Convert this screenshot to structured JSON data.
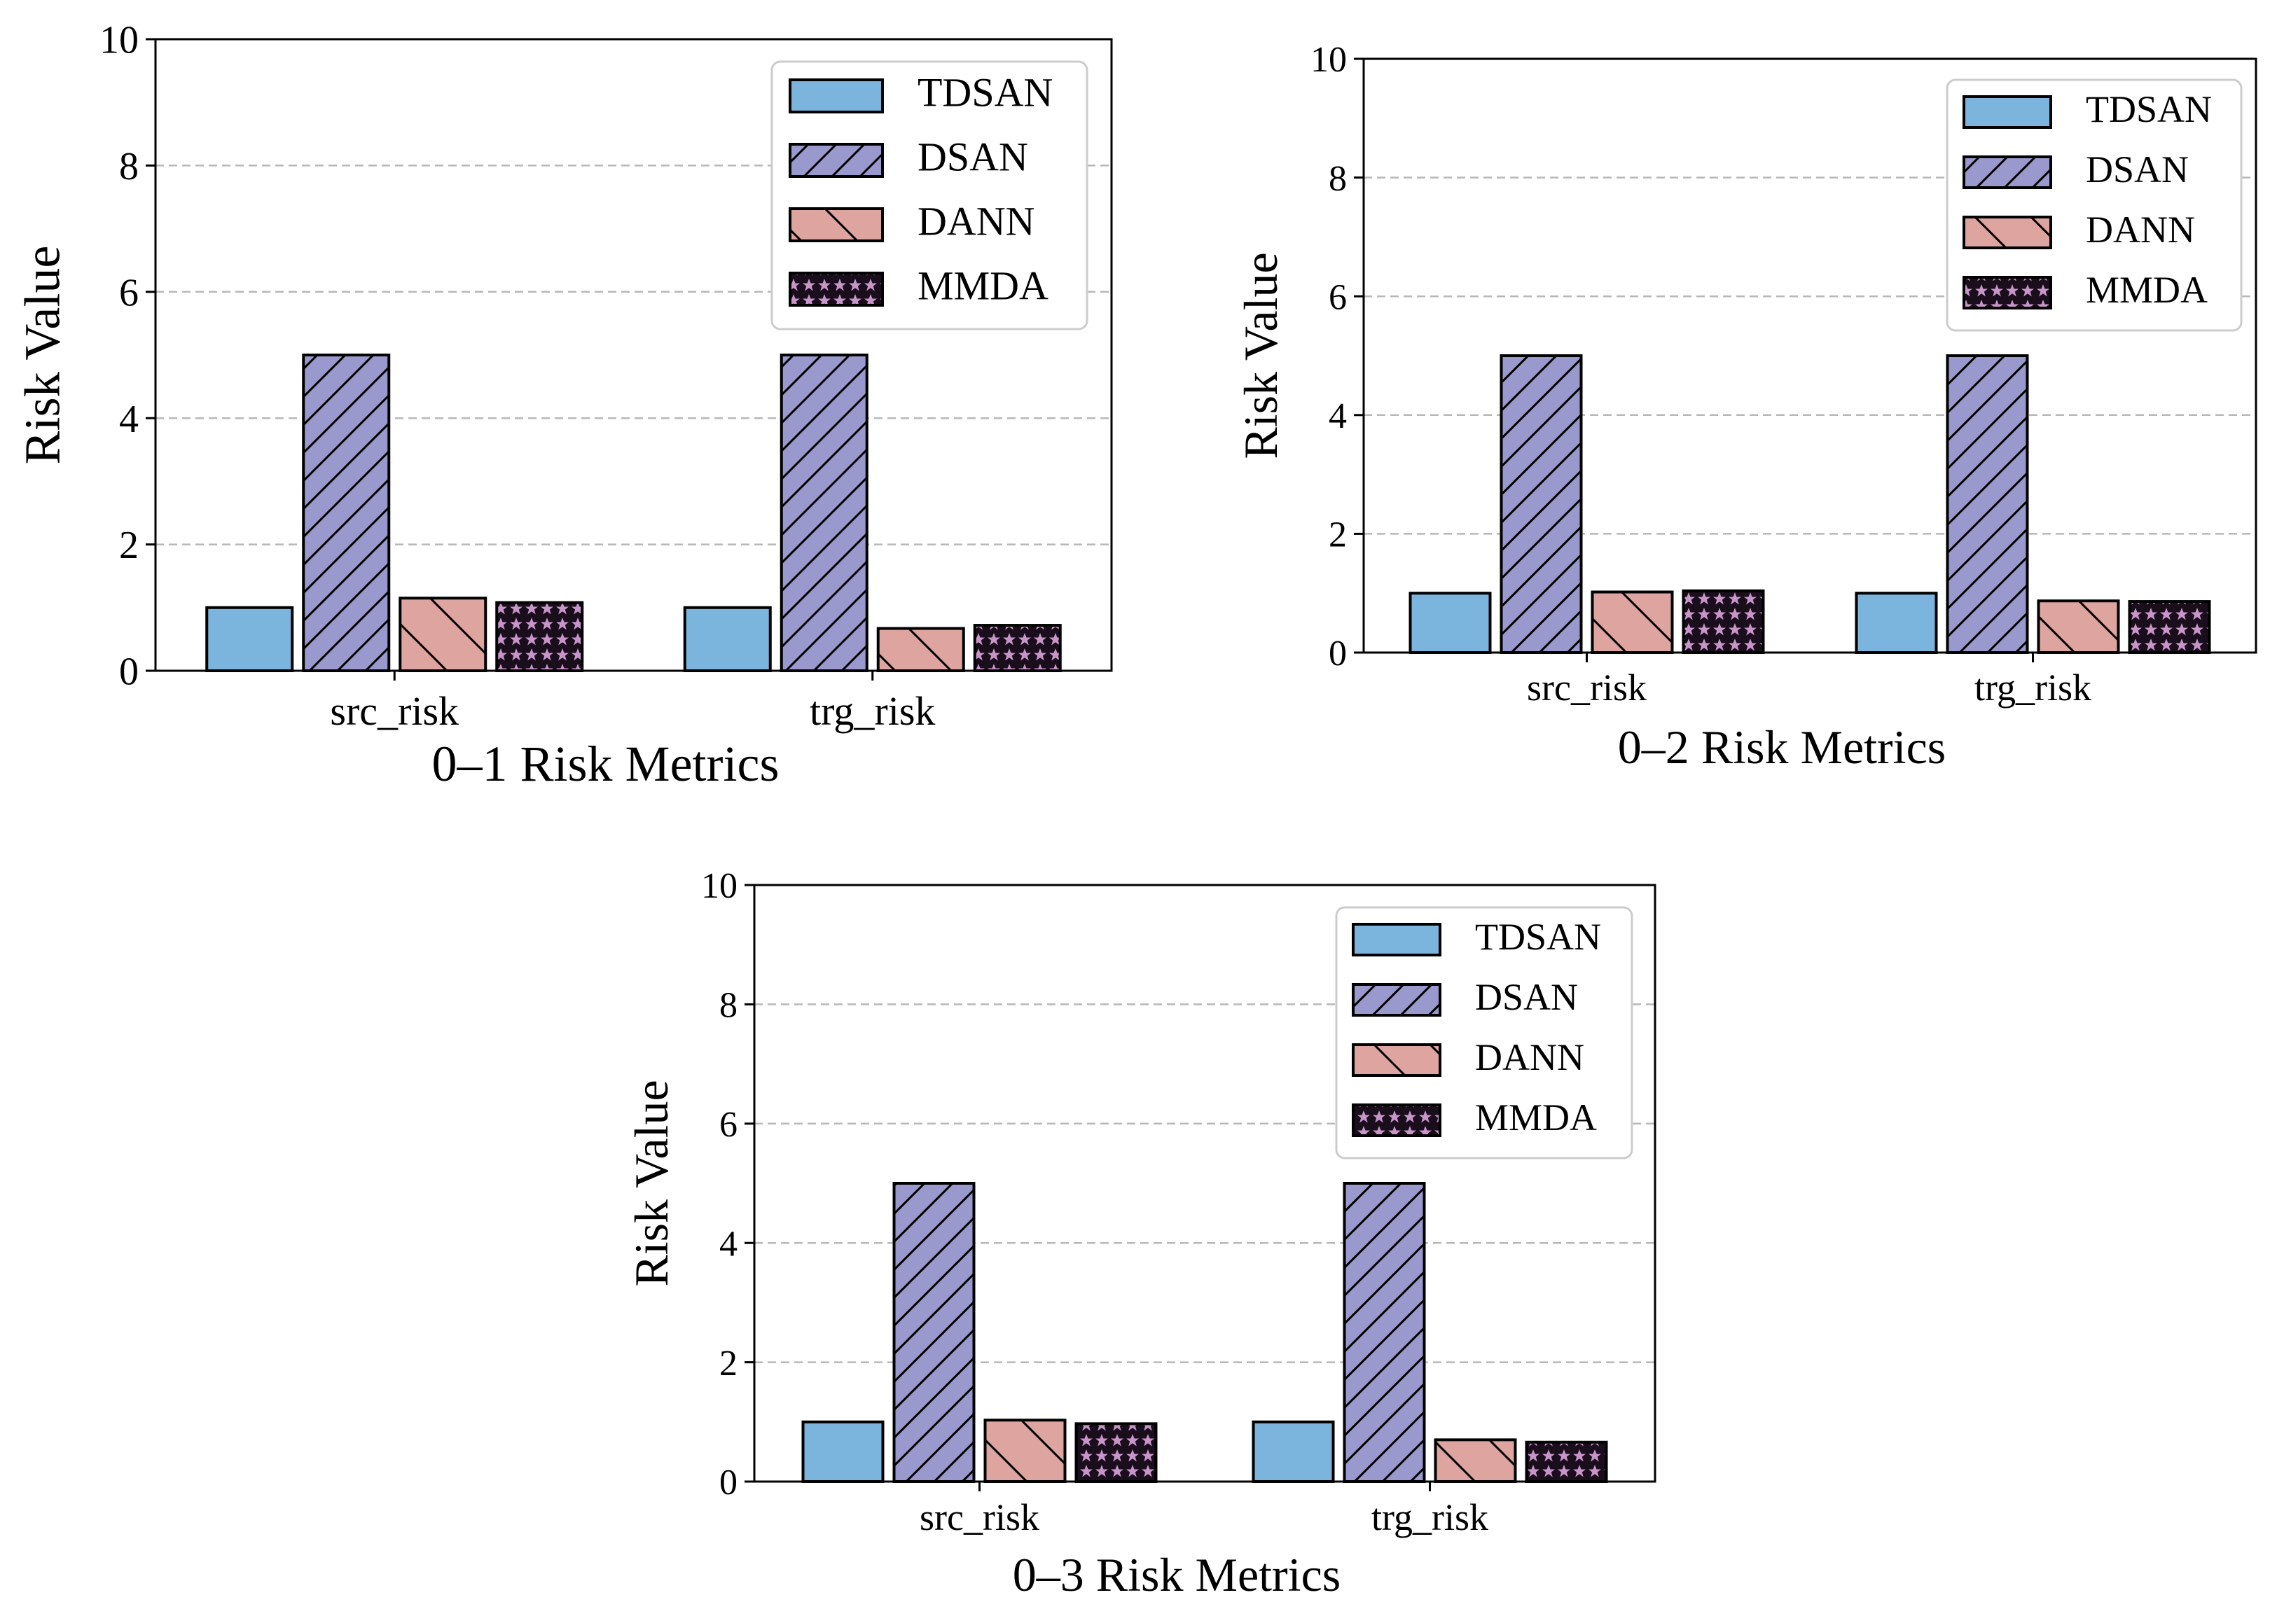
{
  "colors": {
    "TDSAN": "#7bb4dc",
    "DSAN": "#9a99cd",
    "DANN": "#dea49f",
    "MMDA": "#c795c8",
    "edge": "#000000",
    "grid": "#b8b8b8"
  },
  "chart_data": [
    {
      "type": "bar",
      "title": "",
      "xlabel": "0–1 Risk Metrics",
      "ylabel": "Risk Value",
      "ylim": [
        0,
        10
      ],
      "yticks": [
        "0",
        "2",
        "4",
        "6",
        "8",
        "10"
      ],
      "ytick_values": [
        0,
        2,
        4,
        6,
        8,
        10
      ],
      "grid": "y-dashed",
      "legend_position": "top-right",
      "categories": [
        "src_risk",
        "trg_risk"
      ],
      "series": [
        {
          "name": "TDSAN",
          "values": [
            1.0,
            1.0
          ],
          "hatch": "none"
        },
        {
          "name": "DSAN",
          "values": [
            5.0,
            5.0
          ],
          "hatch": "forward-diagonal"
        },
        {
          "name": "DANN",
          "values": [
            1.15,
            0.67
          ],
          "hatch": "backward-diagonal"
        },
        {
          "name": "MMDA",
          "values": [
            1.08,
            0.72
          ],
          "hatch": "stars"
        }
      ]
    },
    {
      "type": "bar",
      "title": "",
      "xlabel": "0–2 Risk Metrics",
      "ylabel": "Risk Value",
      "ylim": [
        0,
        10
      ],
      "yticks": [
        "0",
        "2",
        "4",
        "6",
        "8",
        "10"
      ],
      "ytick_values": [
        0,
        2,
        4,
        6,
        8,
        10
      ],
      "grid": "y-dashed",
      "legend_position": "top-right",
      "categories": [
        "src_risk",
        "trg_risk"
      ],
      "series": [
        {
          "name": "TDSAN",
          "values": [
            1.0,
            1.0
          ],
          "hatch": "none"
        },
        {
          "name": "DSAN",
          "values": [
            5.0,
            5.0
          ],
          "hatch": "forward-diagonal"
        },
        {
          "name": "DANN",
          "values": [
            1.02,
            0.87
          ],
          "hatch": "backward-diagonal"
        },
        {
          "name": "MMDA",
          "values": [
            1.04,
            0.86
          ],
          "hatch": "stars"
        }
      ]
    },
    {
      "type": "bar",
      "title": "",
      "xlabel": "0–3 Risk Metrics",
      "ylabel": "Risk Value",
      "ylim": [
        0,
        10
      ],
      "yticks": [
        "0",
        "2",
        "4",
        "6",
        "8",
        "10"
      ],
      "ytick_values": [
        0,
        2,
        4,
        6,
        8,
        10
      ],
      "grid": "y-dashed",
      "legend_position": "top-right",
      "categories": [
        "src_risk",
        "trg_risk"
      ],
      "series": [
        {
          "name": "TDSAN",
          "values": [
            1.0,
            1.0
          ],
          "hatch": "none"
        },
        {
          "name": "DSAN",
          "values": [
            5.0,
            5.0
          ],
          "hatch": "forward-diagonal"
        },
        {
          "name": "DANN",
          "values": [
            1.03,
            0.7
          ],
          "hatch": "backward-diagonal"
        },
        {
          "name": "MMDA",
          "values": [
            0.97,
            0.66
          ],
          "hatch": "stars"
        }
      ]
    }
  ]
}
